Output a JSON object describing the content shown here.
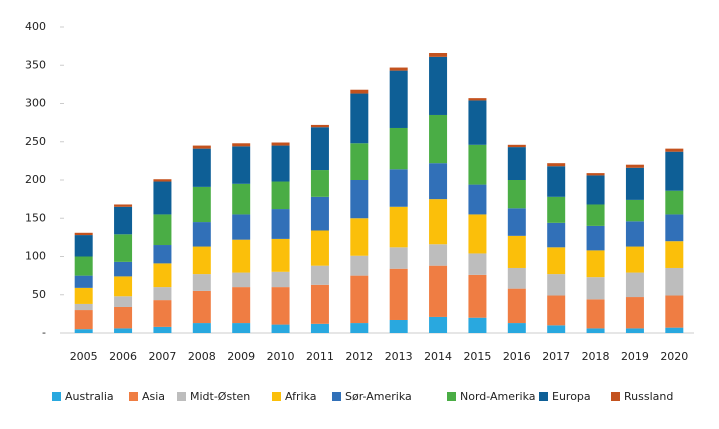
{
  "chart_data": {
    "type": "stacked_bar",
    "categories": [
      "2005",
      "2006",
      "2007",
      "2008",
      "2009",
      "2010",
      "2011",
      "2012",
      "2013",
      "2014",
      "2015",
      "2016",
      "2017",
      "2018",
      "2019",
      "2020"
    ],
    "series": [
      {
        "name": "Australia",
        "color": "#29a8df",
        "values": [
          5,
          6,
          8,
          13,
          13,
          11,
          12,
          13,
          17,
          21,
          20,
          13,
          10,
          6,
          6,
          7
        ]
      },
      {
        "name": "Asia",
        "color": "#ef7d43",
        "values": [
          25,
          28,
          35,
          42,
          47,
          49,
          51,
          62,
          67,
          67,
          56,
          45,
          39,
          38,
          41,
          42
        ]
      },
      {
        "name": "Midt-Østen",
        "color": "#bdbdbd",
        "values": [
          8,
          14,
          17,
          22,
          19,
          20,
          25,
          26,
          28,
          28,
          28,
          27,
          28,
          29,
          32,
          36
        ]
      },
      {
        "name": "Afrika",
        "color": "#fbbf0a",
        "values": [
          21,
          26,
          31,
          36,
          43,
          43,
          46,
          49,
          53,
          59,
          51,
          42,
          35,
          35,
          34,
          35
        ]
      },
      {
        "name": "Sør-Amerika",
        "color": "#3170b8",
        "values": [
          16,
          19,
          24,
          32,
          33,
          39,
          44,
          50,
          49,
          47,
          39,
          36,
          32,
          32,
          33,
          35
        ]
      },
      {
        "name": "Nord-Amerika",
        "color": "#4aad45",
        "values": [
          25,
          36,
          40,
          46,
          40,
          36,
          35,
          48,
          54,
          63,
          52,
          37,
          34,
          28,
          28,
          31
        ]
      },
      {
        "name": "Europa",
        "color": "#0e5f96",
        "values": [
          28,
          36,
          43,
          50,
          49,
          47,
          56,
          65,
          75,
          76,
          58,
          43,
          40,
          38,
          42,
          51
        ]
      },
      {
        "name": "Russland",
        "color": "#c3521e",
        "values": [
          3,
          3,
          3,
          4,
          4,
          4,
          3,
          5,
          4,
          5,
          3,
          3,
          4,
          3,
          4,
          4
        ]
      }
    ],
    "ylim": [
      0,
      400
    ],
    "yticks": [
      {
        "value": 0,
        "label": "-"
      },
      50,
      100,
      150,
      200,
      250,
      300,
      350,
      400
    ]
  }
}
